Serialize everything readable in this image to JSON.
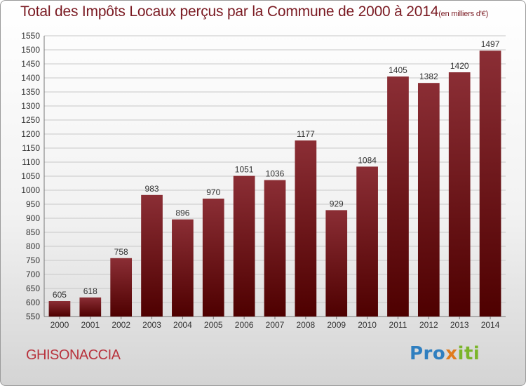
{
  "title": "Total des Impôts Locaux perçus par la Commune de 2000 à 2014",
  "subtitle": "(en milliers d'€)",
  "commune": "GHISONACCIA",
  "logo": {
    "part1": "Pro",
    "part2": "x",
    "part3": "iti"
  },
  "colors": {
    "bar_top": "#8b2e35",
    "bar_bottom": "#4e0000",
    "title": "#7a1a22",
    "commune": "#b8323c"
  },
  "chart_data": {
    "type": "bar",
    "title": "Total des Impôts Locaux perçus par la Commune de 2000 à 2014",
    "subtitle": "(en milliers d'€)",
    "xlabel": "",
    "ylabel": "",
    "categories": [
      "2000",
      "2001",
      "2002",
      "2003",
      "2004",
      "2005",
      "2006",
      "2007",
      "2008",
      "2009",
      "2010",
      "2011",
      "2012",
      "2013",
      "2014"
    ],
    "values": [
      605,
      618,
      758,
      983,
      896,
      970,
      1051,
      1036,
      1177,
      929,
      1084,
      1405,
      1382,
      1420,
      1497
    ],
    "ylim": [
      550,
      1550
    ],
    "yticks": [
      550,
      600,
      650,
      700,
      750,
      800,
      850,
      900,
      950,
      1000,
      1050,
      1100,
      1150,
      1200,
      1250,
      1300,
      1350,
      1400,
      1450,
      1500,
      1550
    ],
    "grid": true,
    "legend": "none"
  }
}
